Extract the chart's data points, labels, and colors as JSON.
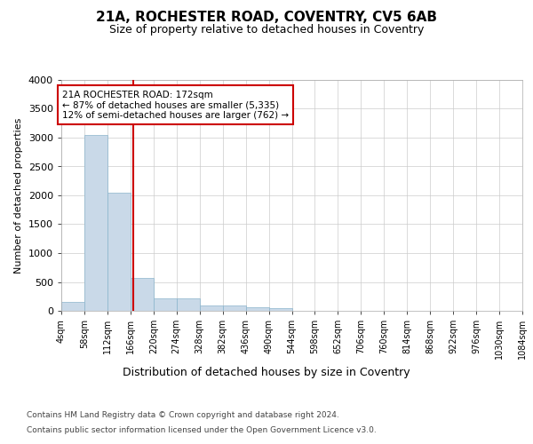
{
  "title": "21A, ROCHESTER ROAD, COVENTRY, CV5 6AB",
  "subtitle": "Size of property relative to detached houses in Coventry",
  "xlabel": "Distribution of detached houses by size in Coventry",
  "ylabel": "Number of detached properties",
  "footer_line1": "Contains HM Land Registry data © Crown copyright and database right 2024.",
  "footer_line2": "Contains public sector information licensed under the Open Government Licence v3.0.",
  "bar_color": "#c9d9e8",
  "bar_edge_color": "#8ab4cc",
  "grid_color": "#cccccc",
  "background_color": "#ffffff",
  "plot_bg_color": "#ffffff",
  "red_line_color": "#cc0000",
  "annotation_text": "21A ROCHESTER ROAD: 172sqm\n← 87% of detached houses are smaller (5,335)\n12% of semi-detached houses are larger (762) →",
  "property_size": 172,
  "bin_edges": [
    4,
    58,
    112,
    166,
    220,
    274,
    328,
    382,
    436,
    490,
    544,
    598,
    652,
    706,
    760,
    814,
    868,
    922,
    976,
    1030,
    1084
  ],
  "bin_labels": [
    "4sqm",
    "58sqm",
    "112sqm",
    "166sqm",
    "220sqm",
    "274sqm",
    "328sqm",
    "382sqm",
    "436sqm",
    "490sqm",
    "544sqm",
    "598sqm",
    "652sqm",
    "706sqm",
    "760sqm",
    "814sqm",
    "868sqm",
    "922sqm",
    "976sqm",
    "1030sqm",
    "1084sqm"
  ],
  "bar_heights": [
    150,
    3050,
    2050,
    570,
    210,
    210,
    90,
    90,
    60,
    50,
    0,
    0,
    0,
    0,
    0,
    0,
    0,
    0,
    0,
    0
  ],
  "ylim": [
    0,
    4000
  ],
  "yticks": [
    0,
    500,
    1000,
    1500,
    2000,
    2500,
    3000,
    3500,
    4000
  ]
}
